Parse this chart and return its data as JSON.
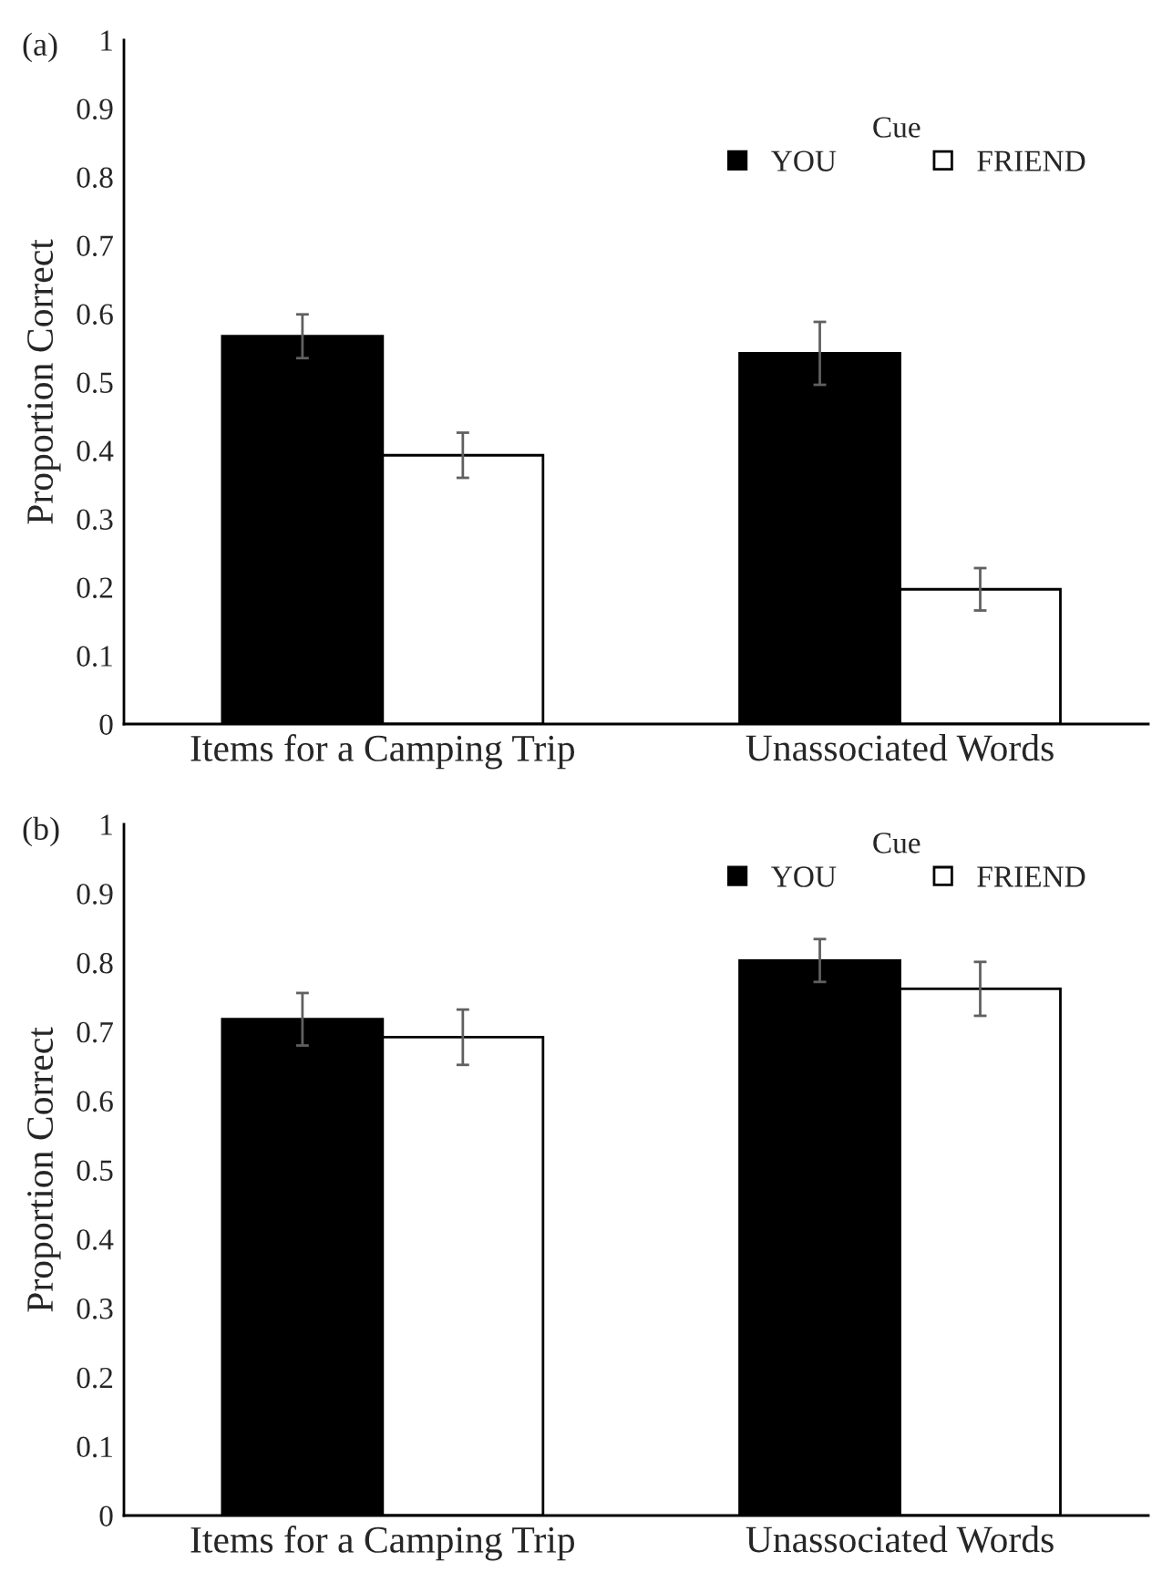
{
  "chart_data": [
    {
      "type": "bar",
      "title": "(a)",
      "ylabel": "Proportion Correct",
      "legend_title": "Cue",
      "legend": "top right",
      "grid": false,
      "categories": [
        "Items for a Camping Trip",
        "Unassociated Words"
      ],
      "ylim": [
        0,
        1
      ],
      "yticks": [
        0,
        0.1,
        0.2,
        0.3,
        0.4,
        0.5,
        0.6,
        0.7,
        0.8,
        0.9,
        1
      ],
      "series": [
        {
          "name": "YOU",
          "color": "#000000",
          "values": [
            0.567,
            0.542
          ],
          "errors": [
            0.032,
            0.046
          ]
        },
        {
          "name": "FRIEND",
          "color": "#ffffff",
          "values": [
            0.393,
            0.197
          ],
          "errors": [
            0.033,
            0.031
          ]
        }
      ]
    },
    {
      "type": "bar",
      "title": "(b)",
      "ylabel": "Proportion Correct",
      "legend_title": "Cue",
      "legend": "top right",
      "grid": false,
      "categories": [
        "Items for a Camping Trip",
        "Unassociated Words"
      ],
      "ylim": [
        0,
        1
      ],
      "yticks": [
        0,
        0.1,
        0.2,
        0.3,
        0.4,
        0.5,
        0.6,
        0.7,
        0.8,
        0.9,
        1
      ],
      "series": [
        {
          "name": "YOU",
          "color": "#000000",
          "values": [
            0.718,
            0.803
          ],
          "errors": [
            0.038,
            0.031
          ]
        },
        {
          "name": "FRIEND",
          "color": "#ffffff",
          "values": [
            0.692,
            0.762
          ],
          "errors": [
            0.04,
            0.039
          ]
        }
      ]
    }
  ]
}
